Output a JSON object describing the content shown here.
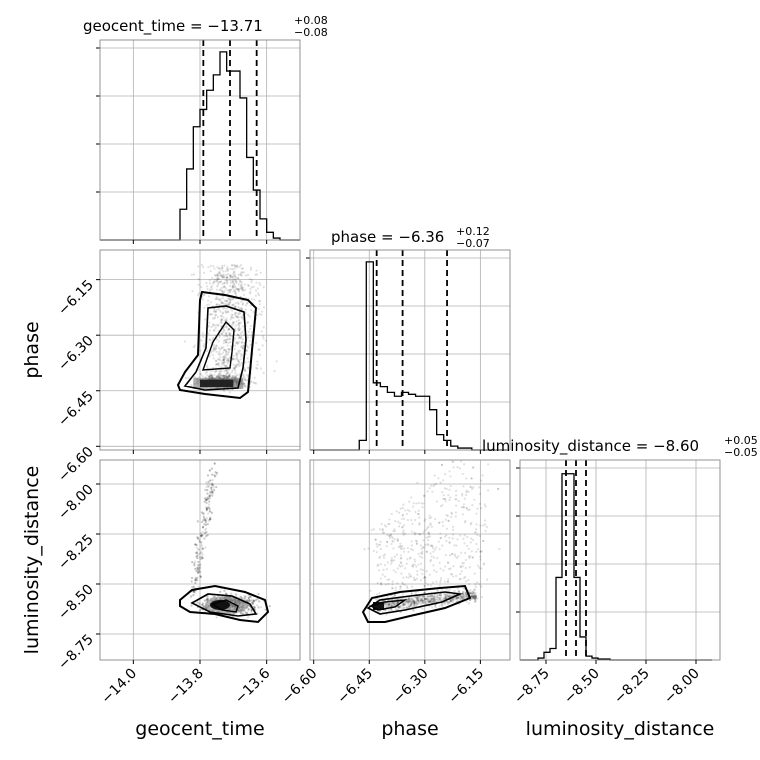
{
  "chart_data": {
    "type": "corner",
    "parameters": [
      "geocent_time",
      "phase",
      "luminosity_distance"
    ],
    "titles": [
      {
        "name": "geocent_time",
        "median": "−13.71",
        "plus": "+0.08",
        "minus": "−0.08"
      },
      {
        "name": "phase",
        "median": "−6.36",
        "plus": "+0.12",
        "minus": "−0.07"
      },
      {
        "name": "luminosity_distance",
        "median": "−8.60",
        "plus": "+0.05",
        "minus": "−0.05"
      }
    ],
    "axes": {
      "geocent_time": {
        "range": [
          -14.1,
          -13.5
        ],
        "ticks": [
          -14.0,
          -13.8,
          -13.6
        ],
        "tick_labels": [
          "−14.0",
          "−13.8",
          "−13.6"
        ]
      },
      "phase": {
        "range": [
          -6.61,
          -6.07
        ],
        "ticks": [
          -6.6,
          -6.45,
          -6.3,
          -6.15
        ],
        "tick_labels": [
          "−6.60",
          "−6.45",
          "−6.30",
          "−6.15"
        ]
      },
      "luminosity_distance": {
        "range": [
          -8.88,
          -7.88
        ],
        "ticks": [
          -8.75,
          -8.5,
          -8.25,
          -8.0
        ],
        "tick_labels": [
          "−8.75",
          "−8.50",
          "−8.25",
          "−8.00"
        ]
      }
    },
    "histograms": [
      {
        "parameter": "geocent_time",
        "bin_edges": [
          -14.1,
          -14.08,
          -14.06,
          -14.04,
          -14.02,
          -14.0,
          -13.98,
          -13.96,
          -13.94,
          -13.92,
          -13.9,
          -13.88,
          -13.86,
          -13.84,
          -13.82,
          -13.8,
          -13.78,
          -13.76,
          -13.74,
          -13.72,
          -13.7,
          -13.68,
          -13.66,
          -13.64,
          -13.62,
          -13.6,
          -13.58,
          -13.56,
          -13.54,
          -13.52,
          -13.5
        ],
        "counts": [
          0,
          0,
          0,
          0,
          0,
          0,
          0,
          0,
          0,
          0,
          0,
          0,
          0.16,
          0.37,
          0.59,
          0.68,
          0.78,
          0.86,
          0.98,
          0.88,
          0.88,
          0.74,
          0.43,
          0.26,
          0.11,
          0.04,
          0.01,
          0,
          0,
          0
        ],
        "quantiles": [
          -13.79,
          -13.71,
          -13.63
        ]
      },
      {
        "parameter": "phase",
        "bin_edges": [
          -6.61,
          -6.591,
          -6.572,
          -6.553,
          -6.534,
          -6.515,
          -6.496,
          -6.477,
          -6.458,
          -6.439,
          -6.42,
          -6.401,
          -6.382,
          -6.363,
          -6.344,
          -6.325,
          -6.306,
          -6.287,
          -6.268,
          -6.249,
          -6.23,
          -6.211,
          -6.192,
          -6.173,
          -6.154,
          -6.135,
          -6.116,
          -6.097,
          -6.078
        ],
        "counts": [
          0,
          0,
          0,
          0,
          0,
          0,
          0,
          0.05,
          0.98,
          0.35,
          0.33,
          0.3,
          0.28,
          0.3,
          0.29,
          0.28,
          0.28,
          0.21,
          0.08,
          0.05,
          0.02,
          0.01,
          0.01,
          0,
          0,
          0,
          0,
          0
        ],
        "quantiles": [
          -6.43,
          -6.36,
          -6.24
        ]
      },
      {
        "parameter": "luminosity_distance",
        "bin_edges": [
          -8.88,
          -8.85,
          -8.82,
          -8.79,
          -8.76,
          -8.73,
          -8.7,
          -8.67,
          -8.64,
          -8.61,
          -8.58,
          -8.55,
          -8.52,
          -8.49,
          -8.46,
          -8.43,
          -8.4,
          -8.37,
          -8.34,
          -8.31,
          -8.28,
          -8.25,
          -8.22,
          -8.19,
          -8.16,
          -8.13,
          -8.1,
          -8.07,
          -8.04,
          -8.01,
          -7.98,
          -7.95,
          -7.92
        ],
        "counts": [
          0,
          0,
          0.0,
          0.01,
          0.04,
          0.06,
          0.43,
          0.97,
          0.97,
          0.43,
          0.12,
          0.02,
          0.01,
          0.005,
          0.005,
          0,
          0,
          0,
          0,
          0,
          0,
          0,
          0,
          0,
          0,
          0,
          0,
          0,
          0,
          0,
          0,
          0
        ],
        "quantiles": [
          -8.65,
          -8.6,
          -8.55
        ]
      }
    ],
    "grid": true,
    "ytick_labels_hidden_on_diagonal": true
  }
}
